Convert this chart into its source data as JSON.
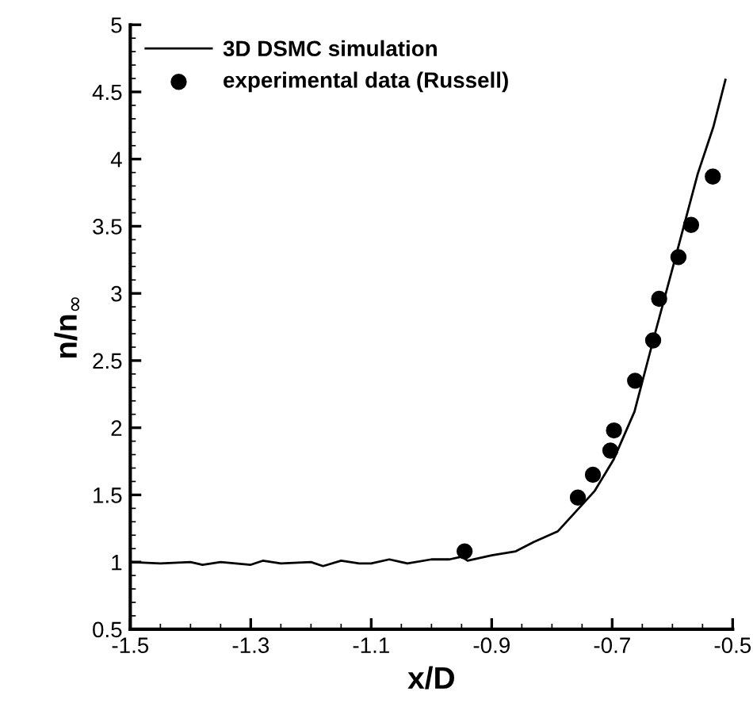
{
  "chart_data": {
    "type": "line",
    "xlabel": "x/D",
    "ylabel": "n/n$_{∞}$",
    "xlim": [
      -1.5,
      -0.5
    ],
    "xticks": [
      -1.5,
      -1.3,
      -1.1,
      -0.9,
      -0.7,
      -0.5
    ],
    "ylim": [
      0.5,
      5
    ],
    "yticks": [
      0.5,
      1,
      1.5,
      2,
      2.5,
      3,
      3.5,
      4,
      4.5,
      5
    ],
    "legend": "top left",
    "grid": false,
    "series": [
      {
        "name": "3D DSMC simulation",
        "color": "#000000",
        "marker": "none",
        "line_style": "solid",
        "x": [
          -1.5,
          -1.45,
          -1.4,
          -1.38,
          -1.35,
          -1.3,
          -1.28,
          -1.25,
          -1.2,
          -1.18,
          -1.15,
          -1.12,
          -1.1,
          -1.07,
          -1.04,
          -1.0,
          -0.97,
          -0.95,
          -0.94,
          -0.9,
          -0.86,
          -0.83,
          -0.79,
          -0.729,
          -0.698,
          -0.663,
          -0.632,
          -0.593,
          -0.558,
          -0.532,
          -0.512
        ],
        "values": [
          1.0,
          0.99,
          1.0,
          0.98,
          1.0,
          0.98,
          1.01,
          0.99,
          1.0,
          0.97,
          1.01,
          0.99,
          0.99,
          1.02,
          0.99,
          1.02,
          1.02,
          1.04,
          1.01,
          1.05,
          1.08,
          1.15,
          1.23,
          1.53,
          1.76,
          2.12,
          2.65,
          3.3,
          3.89,
          4.24,
          4.59
        ]
      },
      {
        "name": "experimental data (Russell)",
        "type": "scatter",
        "color": "#000000",
        "marker": "circle",
        "x": [
          -0.945,
          -0.757,
          -0.732,
          -0.703,
          -0.697,
          -0.662,
          -0.632,
          -0.622,
          -0.59,
          -0.569,
          -0.533
        ],
        "values": [
          1.08,
          1.48,
          1.65,
          1.83,
          1.98,
          2.35,
          2.65,
          2.96,
          3.27,
          3.51,
          3.87
        ]
      }
    ]
  }
}
